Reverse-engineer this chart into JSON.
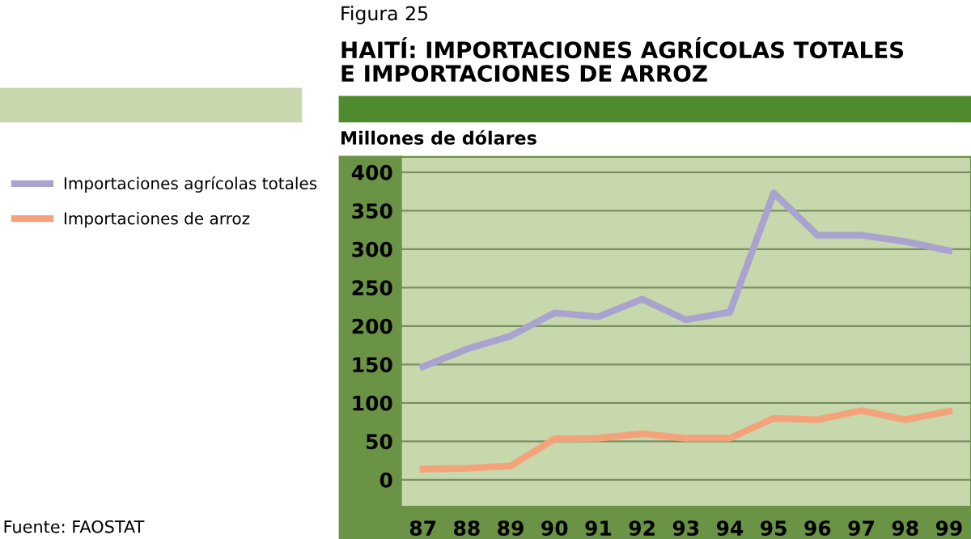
{
  "chart_data": {
    "type": "line",
    "subtitle": "Figura 25",
    "title": "HAITÍ: IMPORTACIONES AGRÍCOLAS TOTALES\nE IMPORTACIONES DE ARROZ",
    "ylabel": "Millones de dólares",
    "categories": [
      "87",
      "88",
      "89",
      "90",
      "91",
      "92",
      "93",
      "94",
      "95",
      "96",
      "97",
      "98",
      "99"
    ],
    "series": [
      {
        "name": "Importaciones agrícolas totales",
        "color": "#a8a3cf",
        "values": [
          147,
          170,
          187,
          217,
          212,
          235,
          208,
          218,
          373,
          318,
          318,
          310,
          298
        ]
      },
      {
        "name": "Importaciones de arroz",
        "color": "#f4a27a",
        "values": [
          14,
          15,
          18,
          53,
          54,
          60,
          54,
          54,
          80,
          78,
          90,
          78,
          89
        ]
      }
    ],
    "ylim": [
      -35,
      420
    ],
    "yticks": [
      0,
      50,
      100,
      150,
      200,
      250,
      300,
      350,
      400
    ],
    "grid": "y",
    "legend": "left",
    "marker": "none",
    "line_style": "solid",
    "annotations": [
      "Fuente: FAOSTAT"
    ]
  }
}
